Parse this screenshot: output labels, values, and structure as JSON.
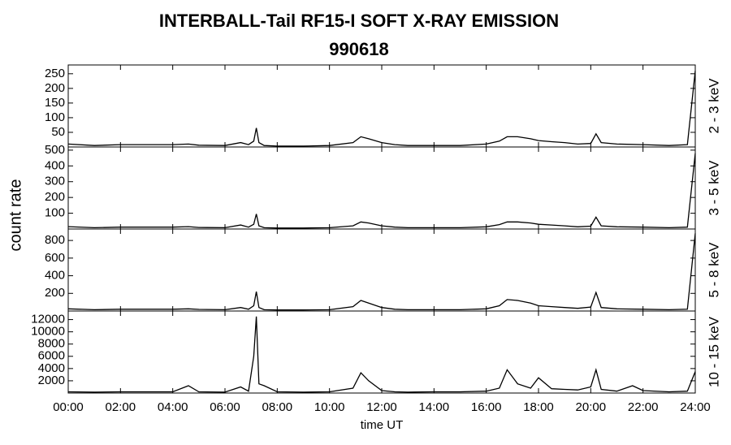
{
  "chart_data": [
    {
      "type": "line",
      "title": "INTERBALL-Tail RF15-I SOFT X-RAY EMISSION",
      "subtitle": "990618",
      "ylabel": "count rate",
      "label": "2 - 3 keV",
      "color": "#000000",
      "x": [
        0,
        1,
        2,
        3,
        4,
        4.6,
        5,
        6,
        6.6,
        6.9,
        7.1,
        7.2,
        7.3,
        7.5,
        8,
        9,
        10,
        10.9,
        11.2,
        11.5,
        12,
        12.5,
        13,
        14,
        15,
        16,
        16.5,
        16.8,
        17.2,
        17.7,
        18,
        18.5,
        19,
        19.5,
        20,
        20.2,
        20.4,
        21,
        22,
        23,
        23.7,
        24
      ],
      "values": [
        10,
        5,
        8,
        8,
        8,
        10,
        6,
        5,
        15,
        8,
        20,
        65,
        15,
        5,
        3,
        3,
        5,
        15,
        35,
        28,
        15,
        8,
        5,
        5,
        5,
        10,
        20,
        35,
        35,
        28,
        22,
        18,
        15,
        10,
        12,
        45,
        15,
        10,
        8,
        5,
        8,
        260
      ],
      "xlim": [
        0,
        24
      ],
      "ylim": [
        0,
        280
      ],
      "yticks": [
        50,
        100,
        150,
        200,
        250
      ]
    },
    {
      "type": "line",
      "label": "3 - 5 keV",
      "color": "#000000",
      "x": [
        0,
        1,
        2,
        3,
        4,
        4.6,
        5,
        6,
        6.6,
        6.9,
        7.1,
        7.2,
        7.3,
        7.5,
        8,
        9,
        10,
        10.9,
        11.2,
        11.5,
        12,
        12.5,
        13,
        14,
        15,
        16,
        16.5,
        16.8,
        17.2,
        17.7,
        18,
        18.5,
        19,
        19.5,
        20,
        20.2,
        20.4,
        21,
        22,
        23,
        23.7,
        24
      ],
      "values": [
        15,
        8,
        12,
        12,
        12,
        15,
        10,
        8,
        25,
        12,
        30,
        95,
        20,
        8,
        6,
        6,
        8,
        20,
        45,
        38,
        20,
        12,
        8,
        8,
        8,
        14,
        28,
        45,
        45,
        38,
        30,
        25,
        20,
        14,
        18,
        75,
        20,
        14,
        12,
        8,
        12,
        480
      ],
      "xlim": [
        0,
        24
      ],
      "ylim": [
        0,
        520
      ],
      "yticks": [
        100,
        200,
        300,
        400,
        500
      ]
    },
    {
      "type": "line",
      "label": "5 - 8 keV",
      "color": "#000000",
      "x": [
        0,
        1,
        2,
        3,
        4,
        4.6,
        5,
        6,
        6.6,
        6.9,
        7.1,
        7.2,
        7.3,
        7.5,
        8,
        9,
        10,
        10.9,
        11.2,
        11.5,
        12,
        12.5,
        13,
        14,
        15,
        16,
        16.5,
        16.8,
        17.2,
        17.7,
        18,
        18.5,
        19,
        19.5,
        20,
        20.2,
        20.4,
        21,
        22,
        23,
        23.7,
        24
      ],
      "values": [
        25,
        15,
        20,
        20,
        20,
        25,
        18,
        15,
        40,
        20,
        60,
        220,
        40,
        15,
        12,
        12,
        15,
        50,
        120,
        90,
        40,
        20,
        15,
        15,
        15,
        25,
        60,
        130,
        120,
        90,
        60,
        50,
        40,
        30,
        45,
        210,
        40,
        25,
        20,
        15,
        20,
        880
      ],
      "xlim": [
        0,
        24
      ],
      "ylim": [
        0,
        930
      ],
      "yticks": [
        200,
        400,
        600,
        800
      ]
    },
    {
      "type": "line",
      "label": "10 - 15 keV",
      "xlabel": "time UT",
      "color": "#000000",
      "x": [
        0,
        1,
        2,
        3,
        4,
        4.6,
        5,
        6,
        6.6,
        6.9,
        7.1,
        7.2,
        7.3,
        7.5,
        8,
        9,
        10,
        10.9,
        11.2,
        11.5,
        12,
        12.5,
        13,
        14,
        15,
        16,
        16.5,
        16.8,
        17.2,
        17.7,
        18,
        18.5,
        19,
        19.5,
        20,
        20.2,
        20.4,
        21,
        21.6,
        22,
        23,
        23.7,
        24
      ],
      "values": [
        200,
        150,
        200,
        200,
        200,
        1200,
        200,
        150,
        1000,
        300,
        6000,
        12500,
        1500,
        1200,
        200,
        150,
        200,
        800,
        3300,
        2000,
        400,
        200,
        150,
        200,
        200,
        300,
        800,
        3800,
        1500,
        800,
        2500,
        700,
        600,
        500,
        1000,
        3800,
        600,
        300,
        1200,
        400,
        200,
        300,
        3500
      ],
      "xlim": [
        0,
        24
      ],
      "ylim": [
        0,
        13400
      ],
      "yticks": [
        2000,
        4000,
        6000,
        8000,
        10000,
        12000
      ],
      "xticks": [
        {
          "value": 0,
          "label": "00:00"
        },
        {
          "value": 2,
          "label": "02:00"
        },
        {
          "value": 4,
          "label": "04:00"
        },
        {
          "value": 6,
          "label": "06:00"
        },
        {
          "value": 8,
          "label": "08:00"
        },
        {
          "value": 10,
          "label": "10:00"
        },
        {
          "value": 12,
          "label": "12:00"
        },
        {
          "value": 14,
          "label": "14:00"
        },
        {
          "value": 16,
          "label": "16:00"
        },
        {
          "value": 18,
          "label": "18:00"
        },
        {
          "value": 20,
          "label": "20:00"
        },
        {
          "value": 22,
          "label": "22:00"
        },
        {
          "value": 24,
          "label": "24:00"
        }
      ]
    }
  ]
}
